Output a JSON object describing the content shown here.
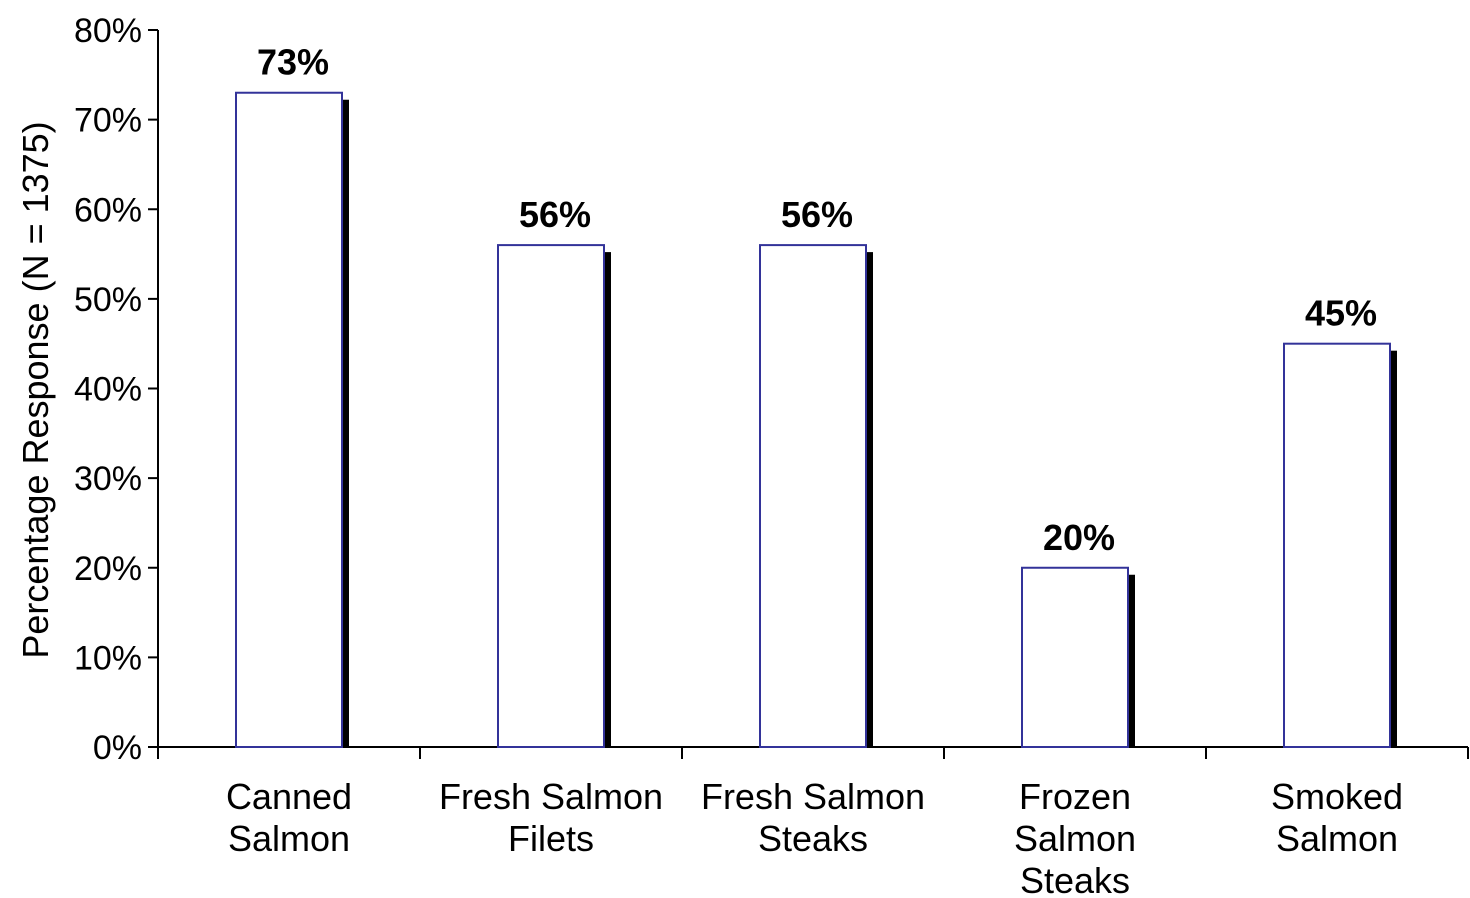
{
  "chart_data": {
    "type": "bar",
    "categories": [
      [
        "Canned",
        "Salmon"
      ],
      [
        "Fresh Salmon",
        "Filets"
      ],
      [
        "Fresh Salmon",
        "Steaks"
      ],
      [
        "Frozen",
        "Salmon",
        "Steaks"
      ],
      [
        "Smoked",
        "Salmon"
      ]
    ],
    "values": [
      73,
      56,
      56,
      20,
      45
    ],
    "data_labels": [
      "73%",
      "56%",
      "56%",
      "20%",
      "45%"
    ],
    "title": "",
    "xlabel": "",
    "ylabel": "Percentage Response (N = 1375)",
    "ylim": [
      0,
      80
    ],
    "yticks": [
      0,
      10,
      20,
      30,
      40,
      50,
      60,
      70,
      80
    ],
    "ytick_labels": [
      "0%",
      "10%",
      "20%",
      "30%",
      "40%",
      "50%",
      "60%",
      "70%",
      "80%"
    ],
    "grid": false,
    "legend": "none",
    "colors": {
      "bar_fill": "#ffffff",
      "bar_stroke": "#333399",
      "shadow": "#000000",
      "axis": "#000000"
    }
  }
}
